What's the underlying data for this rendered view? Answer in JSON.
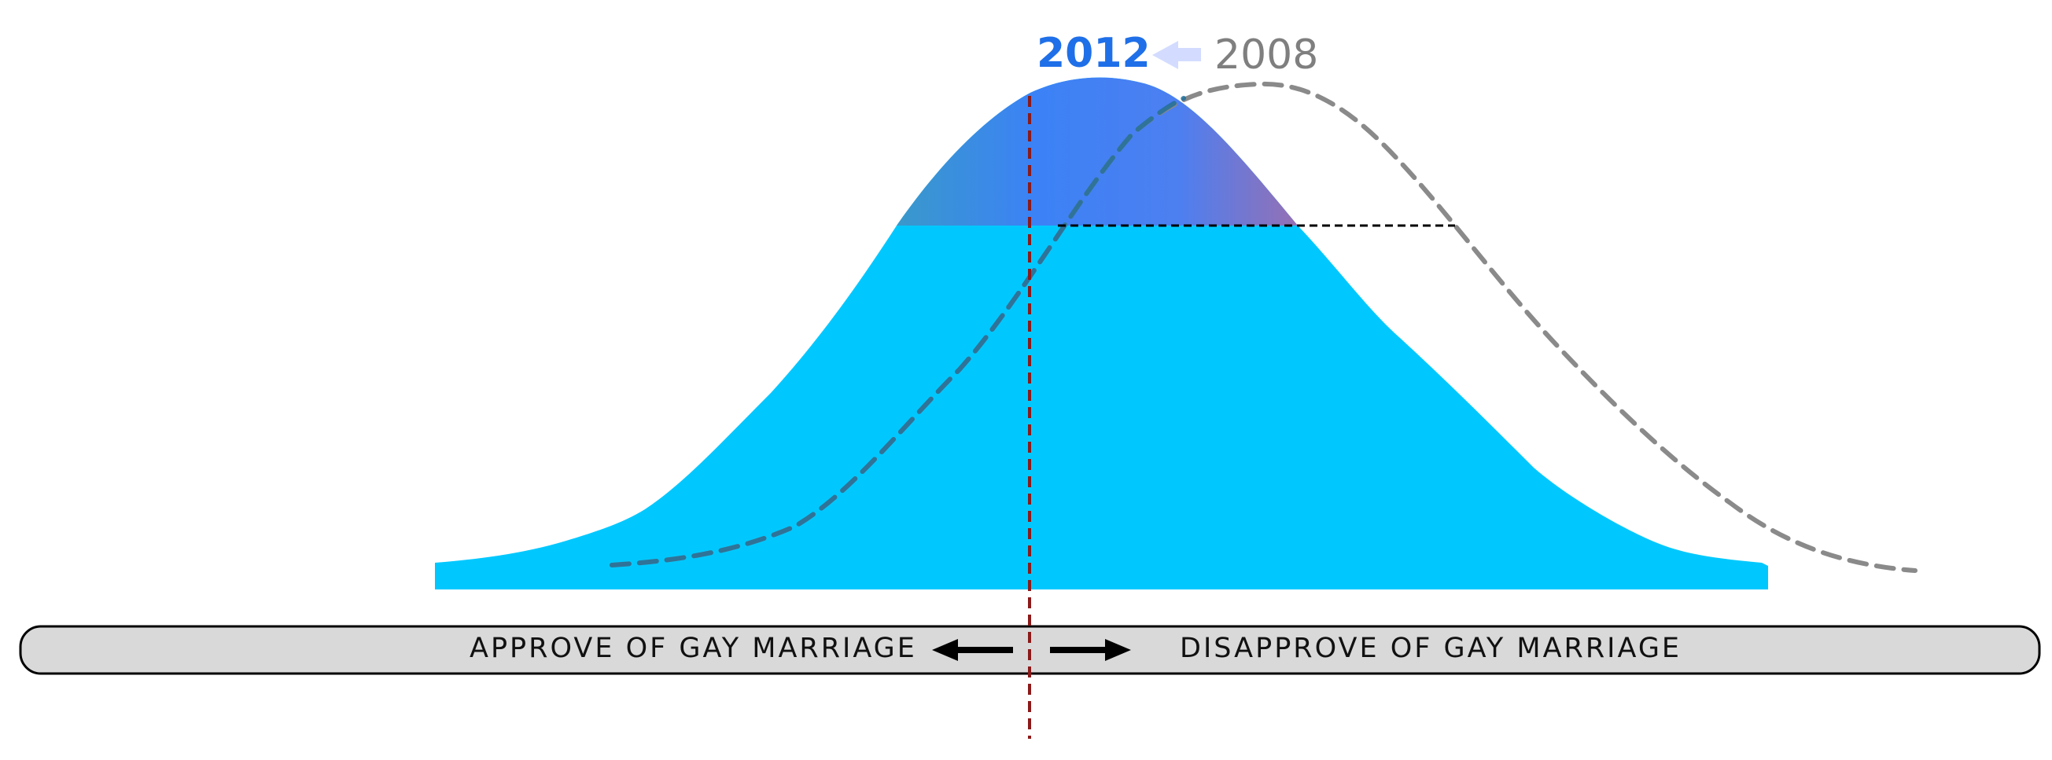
{
  "diagram": {
    "legend": {
      "current_year": "2012",
      "previous_year": "2008"
    },
    "axis": {
      "left_label": "APPROVE OF GAY MARRIAGE",
      "right_label": "DISAPPROVE OF GAY MARRIAGE"
    },
    "colors": {
      "curve_2012_fill": "#00c8ff",
      "curve_2012_peak": "#3b82f6",
      "curve_2008_stroke": "#8a8a8a",
      "median_line": "#8b1a1a",
      "axis_bar_fill": "#d9d9d9",
      "year_2012_text": "#1f6fe8",
      "year_2008_text": "#7f7f7f",
      "shift_arrow": "#d3dcff"
    }
  }
}
